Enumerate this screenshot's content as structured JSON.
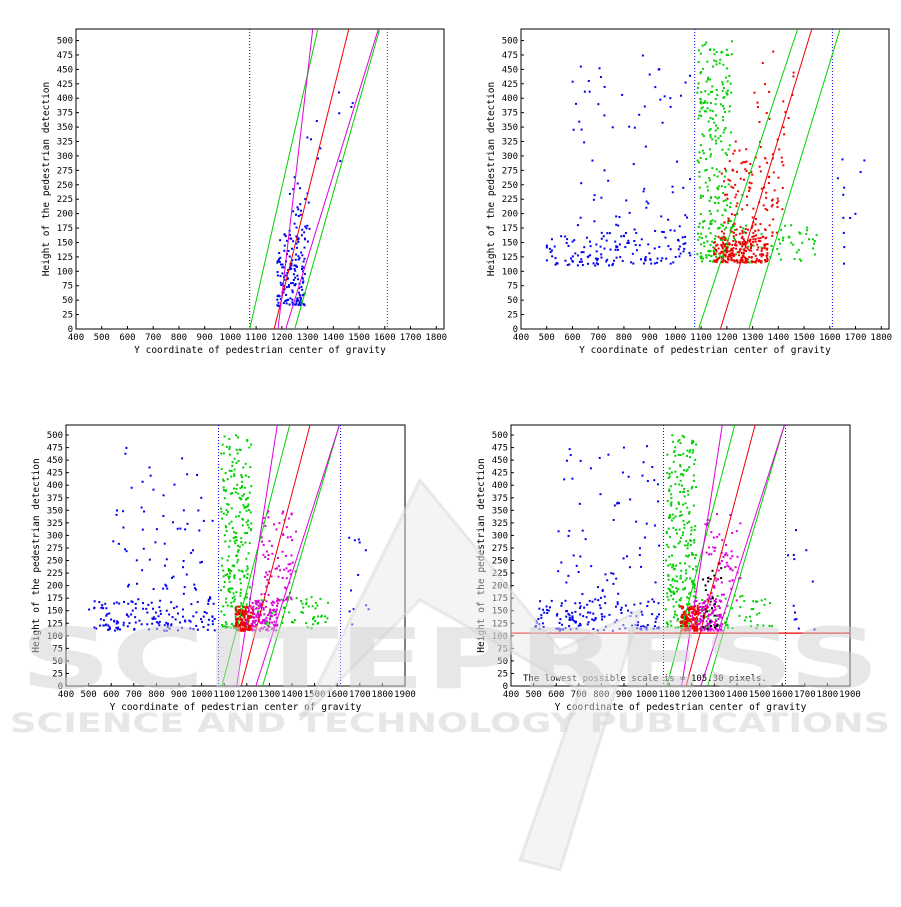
{
  "watermark": {
    "brand": "SCITEPRESS",
    "tagline": "SCIENCE AND TECHNOLOGY PUBLICATIONS"
  },
  "colors": {
    "blue": "#0000ee",
    "green": "#00d000",
    "red": "#ee0000",
    "magenta": "#dd00dd",
    "black": "#000000"
  },
  "chart_data": [
    {
      "type": "scatter",
      "xlabel": "Y coordinate of pedestrian center of gravity",
      "ylabel": "Height of the pedestrian detection",
      "xlim": [
        400,
        1830
      ],
      "ylim": [
        0,
        520
      ],
      "xticks": [
        400,
        500,
        600,
        700,
        800,
        900,
        1000,
        1100,
        1200,
        1300,
        1400,
        1500,
        1600,
        1700,
        1800
      ],
      "yticks": [
        0,
        25,
        50,
        75,
        100,
        125,
        150,
        175,
        200,
        225,
        250,
        275,
        300,
        325,
        350,
        375,
        400,
        425,
        450,
        475,
        500
      ],
      "vlines": [
        {
          "x": 1075,
          "color": "black"
        },
        {
          "x": 1610,
          "color": "red"
        }
      ],
      "lines": [
        {
          "color": "green",
          "points": [
            [
              1075,
              0
            ],
            [
              1340,
              520
            ]
          ]
        },
        {
          "color": "green",
          "points": [
            [
              1250,
              0
            ],
            [
              1580,
              520
            ]
          ]
        },
        {
          "color": "red",
          "points": [
            [
              1170,
              0
            ],
            [
              1460,
              520
            ]
          ]
        },
        {
          "color": "magenta",
          "points": [
            [
              1185,
              0
            ],
            [
              1320,
              520
            ]
          ]
        },
        {
          "color": "magenta",
          "points": [
            [
              1215,
              0
            ],
            [
              1575,
              520
            ]
          ]
        }
      ],
      "clusters": [
        {
          "color": "blue",
          "xr": [
            1180,
            1290
          ],
          "yr": [
            40,
            165
          ],
          "n": 150,
          "seed": 11
        },
        {
          "color": "blue",
          "xr": [
            1230,
            1310
          ],
          "yr": [
            150,
            270
          ],
          "n": 30,
          "seed": 12
        },
        {
          "color": "blue",
          "xr": [
            1290,
            1480
          ],
          "yr": [
            270,
            520
          ],
          "n": 10,
          "seed": 13
        }
      ]
    },
    {
      "type": "scatter",
      "xlabel": "Y coordinate of pedestrian center of gravity",
      "ylabel": "Height of the pedestrian detection",
      "xlim": [
        400,
        1830
      ],
      "ylim": [
        0,
        520
      ],
      "xticks": [
        400,
        500,
        600,
        700,
        800,
        900,
        1000,
        1100,
        1200,
        1300,
        1400,
        1500,
        1600,
        1700,
        1800
      ],
      "yticks": [
        0,
        25,
        50,
        75,
        100,
        125,
        150,
        175,
        200,
        225,
        250,
        275,
        300,
        325,
        350,
        375,
        400,
        425,
        450,
        475,
        500
      ],
      "vlines": [
        {
          "x": 1075,
          "color": "blue"
        },
        {
          "x": 1610,
          "color": "blue"
        }
      ],
      "lines": [
        {
          "color": "green",
          "points": [
            [
              1090,
              0
            ],
            [
              1475,
              520
            ]
          ]
        },
        {
          "color": "green",
          "points": [
            [
              1285,
              0
            ],
            [
              1640,
              520
            ]
          ]
        },
        {
          "color": "red",
          "points": [
            [
              1175,
              0
            ],
            [
              1530,
              520
            ]
          ]
        }
      ],
      "clusters": [
        {
          "color": "blue",
          "xr": [
            500,
            1060
          ],
          "yr": [
            110,
            170
          ],
          "n": 140,
          "seed": 21
        },
        {
          "color": "blue",
          "xr": [
            600,
            1060
          ],
          "yr": [
            170,
            480
          ],
          "n": 70,
          "seed": 22
        },
        {
          "color": "blue",
          "xr": [
            1620,
            1760
          ],
          "yr": [
            110,
            320
          ],
          "n": 12,
          "seed": 23
        },
        {
          "color": "green",
          "xr": [
            1085,
            1220
          ],
          "yr": [
            115,
            500
          ],
          "n": 260,
          "seed": 24
        },
        {
          "color": "green",
          "xr": [
            1220,
            1560
          ],
          "yr": [
            115,
            180
          ],
          "n": 60,
          "seed": 25
        },
        {
          "color": "red",
          "xr": [
            1150,
            1360
          ],
          "yr": [
            115,
            160
          ],
          "n": 230,
          "seed": 26
        },
        {
          "color": "red",
          "xr": [
            1180,
            1420
          ],
          "yr": [
            160,
            330
          ],
          "n": 130,
          "seed": 27
        },
        {
          "color": "red",
          "xr": [
            1300,
            1460
          ],
          "yr": [
            330,
            500
          ],
          "n": 18,
          "seed": 28
        }
      ]
    },
    {
      "type": "scatter",
      "xlabel": "Y coordinate of pedestrian center of gravity",
      "ylabel": "Height of the pedestrian detection",
      "xlim": [
        400,
        1900
      ],
      "ylim": [
        0,
        520
      ],
      "xticks": [
        400,
        500,
        600,
        700,
        800,
        900,
        1000,
        1100,
        1200,
        1300,
        1400,
        1500,
        1600,
        1700,
        1800,
        1900
      ],
      "yticks": [
        0,
        25,
        50,
        75,
        100,
        125,
        150,
        175,
        200,
        225,
        250,
        275,
        300,
        325,
        350,
        375,
        400,
        425,
        450,
        475,
        500
      ],
      "vlines": [
        {
          "x": 1075,
          "color": "blue"
        },
        {
          "x": 1615,
          "color": "blue"
        }
      ],
      "lines": [
        {
          "color": "green",
          "points": [
            [
              1090,
              0
            ],
            [
              1390,
              520
            ]
          ]
        },
        {
          "color": "green",
          "points": [
            [
              1270,
              0
            ],
            [
              1610,
              520
            ]
          ]
        },
        {
          "color": "red",
          "points": [
            [
              1175,
              0
            ],
            [
              1480,
              520
            ]
          ]
        },
        {
          "color": "magenta",
          "points": [
            [
              1155,
              0
            ],
            [
              1335,
              520
            ]
          ]
        },
        {
          "color": "magenta",
          "points": [
            [
              1240,
              0
            ],
            [
              1610,
              520
            ]
          ]
        }
      ],
      "clusters": [
        {
          "color": "blue",
          "xr": [
            500,
            1060
          ],
          "yr": [
            110,
            170
          ],
          "n": 140,
          "seed": 31
        },
        {
          "color": "blue",
          "xr": [
            600,
            1060
          ],
          "yr": [
            170,
            480
          ],
          "n": 70,
          "seed": 32
        },
        {
          "color": "blue",
          "xr": [
            1620,
            1760
          ],
          "yr": [
            110,
            320
          ],
          "n": 12,
          "seed": 33
        },
        {
          "color": "green",
          "xr": [
            1085,
            1220
          ],
          "yr": [
            115,
            500
          ],
          "n": 260,
          "seed": 34
        },
        {
          "color": "green",
          "xr": [
            1220,
            1560
          ],
          "yr": [
            115,
            180
          ],
          "n": 60,
          "seed": 35
        },
        {
          "color": "red",
          "xr": [
            1150,
            1230
          ],
          "yr": [
            110,
            160
          ],
          "n": 150,
          "seed": 36
        },
        {
          "color": "magenta",
          "xr": [
            1220,
            1340
          ],
          "yr": [
            110,
            170
          ],
          "n": 120,
          "seed": 37
        },
        {
          "color": "magenta",
          "xr": [
            1260,
            1420
          ],
          "yr": [
            170,
            350
          ],
          "n": 80,
          "seed": 38
        }
      ]
    },
    {
      "type": "scatter",
      "xlabel": "Y coordinate of pedestrian center of gravity",
      "ylabel": "Height of the pedestrian detection",
      "xlim": [
        400,
        1900
      ],
      "ylim": [
        0,
        520
      ],
      "xticks": [
        400,
        500,
        600,
        700,
        800,
        900,
        1000,
        1100,
        1200,
        1300,
        1400,
        1500,
        1600,
        1700,
        1800,
        1900
      ],
      "yticks": [
        0,
        25,
        50,
        75,
        100,
        125,
        150,
        175,
        200,
        225,
        250,
        275,
        300,
        325,
        350,
        375,
        400,
        425,
        450,
        475,
        500
      ],
      "vlines": [
        {
          "x": 1075,
          "color": "blue"
        },
        {
          "x": 1615,
          "color": "blue"
        }
      ],
      "hlines": [
        {
          "y": 105.3,
          "color": "red"
        }
      ],
      "annotation": "The lowest possible scale is = 105.30 pixels.",
      "lines": [
        {
          "color": "green",
          "points": [
            [
              1090,
              0
            ],
            [
              1390,
              520
            ]
          ]
        },
        {
          "color": "green",
          "points": [
            [
              1270,
              0
            ],
            [
              1610,
              520
            ]
          ]
        },
        {
          "color": "red",
          "points": [
            [
              1175,
              0
            ],
            [
              1480,
              520
            ]
          ]
        },
        {
          "color": "magenta",
          "points": [
            [
              1155,
              0
            ],
            [
              1335,
              520
            ]
          ]
        },
        {
          "color": "magenta",
          "points": [
            [
              1240,
              0
            ],
            [
              1610,
              520
            ]
          ]
        }
      ],
      "clusters": [
        {
          "color": "blue",
          "xr": [
            500,
            1060
          ],
          "yr": [
            110,
            170
          ],
          "n": 140,
          "seed": 41
        },
        {
          "color": "blue",
          "xr": [
            600,
            1060
          ],
          "yr": [
            170,
            480
          ],
          "n": 70,
          "seed": 42
        },
        {
          "color": "blue",
          "xr": [
            1620,
            1760
          ],
          "yr": [
            110,
            320
          ],
          "n": 12,
          "seed": 43
        },
        {
          "color": "green",
          "xr": [
            1085,
            1220
          ],
          "yr": [
            115,
            500
          ],
          "n": 260,
          "seed": 44
        },
        {
          "color": "green",
          "xr": [
            1220,
            1560
          ],
          "yr": [
            115,
            180
          ],
          "n": 60,
          "seed": 45
        },
        {
          "color": "red",
          "xr": [
            1150,
            1230
          ],
          "yr": [
            110,
            160
          ],
          "n": 150,
          "seed": 46
        },
        {
          "color": "magenta",
          "xr": [
            1220,
            1340
          ],
          "yr": [
            110,
            170
          ],
          "n": 110,
          "seed": 47
        },
        {
          "color": "magenta",
          "xr": [
            1260,
            1420
          ],
          "yr": [
            170,
            350
          ],
          "n": 70,
          "seed": 48
        },
        {
          "color": "black",
          "xr": [
            1250,
            1340
          ],
          "yr": [
            110,
            260
          ],
          "n": 30,
          "seed": 49
        }
      ]
    }
  ]
}
